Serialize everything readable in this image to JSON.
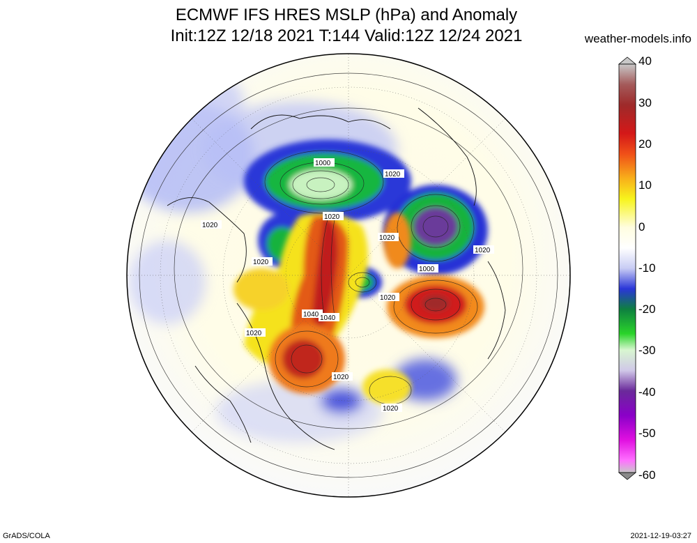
{
  "header": {
    "title_line1": "ECMWF IFS HRES MSLP (hPa) and Anomaly",
    "title_line2": "Init:12Z 12/18 2021 T:144 Valid:12Z 12/24 2021",
    "site": "weather-models.info"
  },
  "footer": {
    "left": "GrADS/COLA",
    "right": "2021-12-19-03:27"
  },
  "colorbar": {
    "ticks": [
      "40",
      "30",
      "20",
      "10",
      "0",
      "-10",
      "-20",
      "-30",
      "-40",
      "-50",
      "-60"
    ],
    "stops": [
      "#8f8f8f",
      "#a33",
      "#c01818",
      "#e73a1a",
      "#f79a1a",
      "#f6f51c",
      "#fffde0",
      "#ffffff",
      "#d8ddf8",
      "#2c36d8",
      "#1130c2",
      "#0aa03a",
      "#2bd62b",
      "#d8f8d0",
      "#b8a8d0",
      "#6a2a9a",
      "#7a00b8",
      "#d000d8",
      "#ff30ff",
      "#c8c8c8"
    ]
  },
  "map": {
    "contour_labels": [
      "1000",
      "1020",
      "1020",
      "1020",
      "1020",
      "1040",
      "1040",
      "1020",
      "1020",
      "1020",
      "1000",
      "1020",
      "1020",
      "1020"
    ],
    "ocean_color": "#fffde8",
    "plot_frame": "circle"
  }
}
